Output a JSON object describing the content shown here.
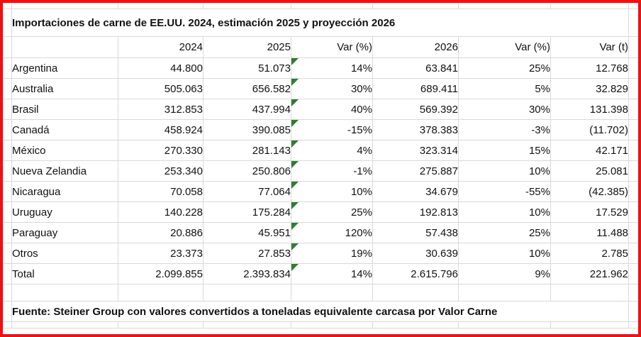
{
  "title": "Importaciones de carne de EE.UU. 2024, estimación 2025 y proyección 2026",
  "table": {
    "headers": [
      "",
      "2024",
      "2025",
      "Var (%)",
      "2026",
      "Var (%)",
      "Var (t)"
    ],
    "rows": [
      {
        "country": "Argentina",
        "y2024": "44.800",
        "y2025": "51.073",
        "var1": "14%",
        "y2026": "63.841",
        "var2": "25%",
        "var_t": "12.768"
      },
      {
        "country": "Australia",
        "y2024": "505.063",
        "y2025": "656.582",
        "var1": "30%",
        "y2026": "689.411",
        "var2": "5%",
        "var_t": "32.829"
      },
      {
        "country": "Brasil",
        "y2024": "312.853",
        "y2025": "437.994",
        "var1": "40%",
        "y2026": "569.392",
        "var2": "30%",
        "var_t": "131.398"
      },
      {
        "country": "Canadá",
        "y2024": "458.924",
        "y2025": "390.085",
        "var1": "-15%",
        "y2026": "378.383",
        "var2": "-3%",
        "var_t": "(11.702)"
      },
      {
        "country": "México",
        "y2024": "270.330",
        "y2025": "281.143",
        "var1": "4%",
        "y2026": "323.314",
        "var2": "15%",
        "var_t": "42.171"
      },
      {
        "country": "Nueva Zelandia",
        "y2024": "253.340",
        "y2025": "250.806",
        "var1": "-1%",
        "y2026": "275.887",
        "var2": "10%",
        "var_t": "25.081"
      },
      {
        "country": "Nicaragua",
        "y2024": "70.058",
        "y2025": "77.064",
        "var1": "10%",
        "y2026": "34.679",
        "var2": "-55%",
        "var_t": "(42.385)"
      },
      {
        "country": "Uruguay",
        "y2024": "140.228",
        "y2025": "175.284",
        "var1": "25%",
        "y2026": "192.813",
        "var2": "10%",
        "var_t": "17.529"
      },
      {
        "country": "Paraguay",
        "y2024": "20.886",
        "y2025": "45.951",
        "var1": "120%",
        "y2026": "57.438",
        "var2": "25%",
        "var_t": "11.488"
      },
      {
        "country": "Otros",
        "y2024": "23.373",
        "y2025": "27.853",
        "var1": "19%",
        "y2026": "30.639",
        "var2": "10%",
        "var_t": "2.785"
      },
      {
        "country": "Total",
        "y2024": "2.099.855",
        "y2025": "2.393.834",
        "var1": "14%",
        "y2026": "2.615.796",
        "var2": "9%",
        "var_t": "221.962"
      }
    ]
  },
  "footer": "Fuente: Steiner Group con valores convertidos a toneladas equivalente carcasa por Valor Carne",
  "colors": {
    "frame_red": "#ee1111",
    "gridline": "#d9d9d9",
    "text": "#111111",
    "flag_green": "#2e7d32",
    "background": "#ffffff"
  }
}
